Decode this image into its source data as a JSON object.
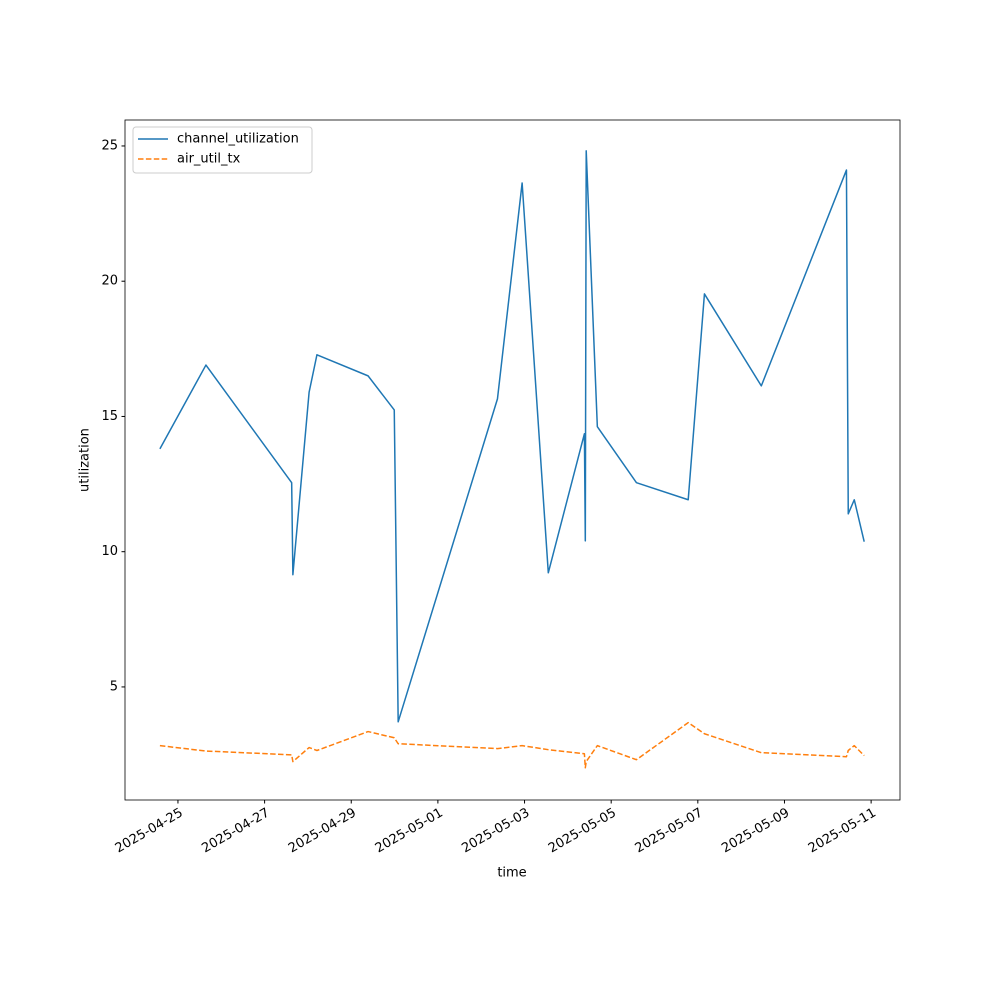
{
  "chart_data": {
    "type": "line",
    "x_label": "time",
    "y_label": "utilization",
    "x": [
      "2025-04-24T14:00",
      "2025-04-25T15:30",
      "2025-04-27T15:00",
      "2025-04-27T15:40",
      "2025-04-28T00:40",
      "2025-04-28T05:00",
      "2025-04-29T09:20",
      "2025-04-29T23:50",
      "2025-04-30T02:00",
      "2025-05-02T09:00",
      "2025-05-02T22:40",
      "2025-05-03T13:10",
      "2025-05-04T09:10",
      "2025-05-04T09:40",
      "2025-05-04T10:10",
      "2025-05-04T16:20",
      "2025-05-05T14:00",
      "2025-05-06T18:40",
      "2025-05-07T03:40",
      "2025-05-08T11:10",
      "2025-05-10T10:20",
      "2025-05-10T11:20",
      "2025-05-10T14:40",
      "2025-05-10T20:10"
    ],
    "series": [
      {
        "name": "channel_utilization",
        "color": "#1f77b4",
        "dash": false,
        "values": [
          13.8,
          16.9,
          12.55,
          9.15,
          15.9,
          17.28,
          16.5,
          15.24,
          3.71,
          15.65,
          23.63,
          9.22,
          14.36,
          10.4,
          24.82,
          14.62,
          12.55,
          11.92,
          19.53,
          16.13,
          24.11,
          11.4,
          11.92,
          10.37
        ]
      },
      {
        "name": "air_util_tx",
        "color": "#ff7f0e",
        "dash": true,
        "values": [
          2.83,
          2.63,
          2.49,
          2.24,
          2.76,
          2.65,
          3.35,
          3.12,
          2.9,
          2.72,
          2.83,
          2.68,
          2.53,
          2.01,
          2.24,
          2.83,
          2.31,
          3.68,
          3.27,
          2.57,
          2.42,
          2.65,
          2.83,
          2.46
        ]
      }
    ],
    "xlim": [
      "2025-04-23T18:40",
      "2025-05-11T16:00"
    ],
    "xticks": [
      "2025-04-25",
      "2025-04-27",
      "2025-04-29",
      "2025-05-01",
      "2025-05-03",
      "2025-05-05",
      "2025-05-07",
      "2025-05-09",
      "2025-05-11"
    ],
    "ylim": [
      0.82,
      25.96
    ],
    "yticks": [
      5,
      10,
      15,
      20,
      25
    ],
    "legend": "upper left",
    "grid": false
  }
}
